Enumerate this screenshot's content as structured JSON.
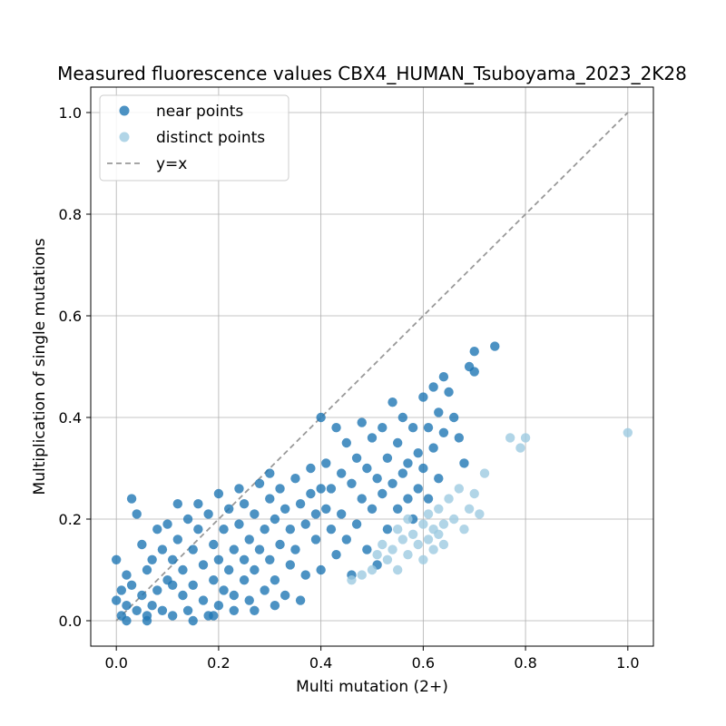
{
  "chart_data": {
    "type": "scatter",
    "title": "Measured fluorescence values CBX4_HUMAN_Tsuboyama_2023_2K28",
    "xlabel": "Multi mutation (2+)",
    "ylabel": "Multiplication of single mutations",
    "xlim": [
      -0.05,
      1.05
    ],
    "ylim": [
      -0.05,
      1.05
    ],
    "xticks": [
      "0.0",
      "0.2",
      "0.4",
      "0.6",
      "0.8",
      "1.0"
    ],
    "yticks": [
      "0.0",
      "0.2",
      "0.4",
      "0.6",
      "0.8",
      "1.0"
    ],
    "grid": true,
    "legend_position": "top-left",
    "series": [
      {
        "name": "near points",
        "color": "#1f77b4",
        "points": [
          [
            0.0,
            0.12
          ],
          [
            0.0,
            0.04
          ],
          [
            0.01,
            0.01
          ],
          [
            0.01,
            0.06
          ],
          [
            0.02,
            0.09
          ],
          [
            0.02,
            0.03
          ],
          [
            0.03,
            0.24
          ],
          [
            0.03,
            0.07
          ],
          [
            0.04,
            0.21
          ],
          [
            0.04,
            0.02
          ],
          [
            0.05,
            0.15
          ],
          [
            0.05,
            0.05
          ],
          [
            0.06,
            0.1
          ],
          [
            0.06,
            0.01
          ],
          [
            0.07,
            0.12
          ],
          [
            0.07,
            0.03
          ],
          [
            0.08,
            0.18
          ],
          [
            0.08,
            0.06
          ],
          [
            0.09,
            0.14
          ],
          [
            0.09,
            0.02
          ],
          [
            0.1,
            0.19
          ],
          [
            0.1,
            0.08
          ],
          [
            0.11,
            0.12
          ],
          [
            0.11,
            0.01
          ],
          [
            0.12,
            0.23
          ],
          [
            0.12,
            0.16
          ],
          [
            0.13,
            0.05
          ],
          [
            0.13,
            0.1
          ],
          [
            0.14,
            0.2
          ],
          [
            0.14,
            0.02
          ],
          [
            0.15,
            0.14
          ],
          [
            0.15,
            0.07
          ],
          [
            0.16,
            0.23
          ],
          [
            0.16,
            0.18
          ],
          [
            0.17,
            0.04
          ],
          [
            0.17,
            0.11
          ],
          [
            0.18,
            0.21
          ],
          [
            0.18,
            0.01
          ],
          [
            0.19,
            0.15
          ],
          [
            0.19,
            0.08
          ],
          [
            0.2,
            0.25
          ],
          [
            0.2,
            0.12
          ],
          [
            0.2,
            0.03
          ],
          [
            0.21,
            0.18
          ],
          [
            0.21,
            0.06
          ],
          [
            0.22,
            0.22
          ],
          [
            0.22,
            0.1
          ],
          [
            0.23,
            0.14
          ],
          [
            0.23,
            0.02
          ],
          [
            0.24,
            0.26
          ],
          [
            0.24,
            0.19
          ],
          [
            0.25,
            0.08
          ],
          [
            0.25,
            0.12
          ],
          [
            0.25,
            0.23
          ],
          [
            0.26,
            0.16
          ],
          [
            0.26,
            0.04
          ],
          [
            0.27,
            0.21
          ],
          [
            0.27,
            0.1
          ],
          [
            0.28,
            0.27
          ],
          [
            0.28,
            0.14
          ],
          [
            0.29,
            0.18
          ],
          [
            0.29,
            0.06
          ],
          [
            0.3,
            0.24
          ],
          [
            0.3,
            0.12
          ],
          [
            0.3,
            0.29
          ],
          [
            0.31,
            0.2
          ],
          [
            0.31,
            0.08
          ],
          [
            0.32,
            0.15
          ],
          [
            0.32,
            0.26
          ],
          [
            0.33,
            0.22
          ],
          [
            0.33,
            0.05
          ],
          [
            0.34,
            0.18
          ],
          [
            0.34,
            0.11
          ],
          [
            0.35,
            0.28
          ],
          [
            0.35,
            0.14
          ],
          [
            0.36,
            0.23
          ],
          [
            0.36,
            0.04
          ],
          [
            0.37,
            0.19
          ],
          [
            0.37,
            0.09
          ],
          [
            0.38,
            0.3
          ],
          [
            0.38,
            0.25
          ],
          [
            0.39,
            0.16
          ],
          [
            0.39,
            0.21
          ],
          [
            0.4,
            0.4
          ],
          [
            0.4,
            0.26
          ],
          [
            0.4,
            0.1
          ],
          [
            0.41,
            0.22
          ],
          [
            0.41,
            0.31
          ],
          [
            0.42,
            0.18
          ],
          [
            0.42,
            0.26
          ],
          [
            0.43,
            0.38
          ],
          [
            0.43,
            0.13
          ],
          [
            0.44,
            0.29
          ],
          [
            0.44,
            0.21
          ],
          [
            0.45,
            0.16
          ],
          [
            0.45,
            0.35
          ],
          [
            0.46,
            0.27
          ],
          [
            0.46,
            0.09
          ],
          [
            0.47,
            0.32
          ],
          [
            0.47,
            0.19
          ],
          [
            0.48,
            0.39
          ],
          [
            0.48,
            0.24
          ],
          [
            0.49,
            0.14
          ],
          [
            0.49,
            0.3
          ],
          [
            0.5,
            0.36
          ],
          [
            0.5,
            0.22
          ],
          [
            0.51,
            0.28
          ],
          [
            0.51,
            0.11
          ],
          [
            0.52,
            0.38
          ],
          [
            0.52,
            0.25
          ],
          [
            0.53,
            0.32
          ],
          [
            0.53,
            0.18
          ],
          [
            0.54,
            0.43
          ],
          [
            0.54,
            0.27
          ],
          [
            0.55,
            0.22
          ],
          [
            0.55,
            0.35
          ],
          [
            0.56,
            0.4
          ],
          [
            0.56,
            0.29
          ],
          [
            0.57,
            0.24
          ],
          [
            0.57,
            0.31
          ],
          [
            0.58,
            0.38
          ],
          [
            0.58,
            0.2
          ],
          [
            0.59,
            0.33
          ],
          [
            0.59,
            0.26
          ],
          [
            0.6,
            0.44
          ],
          [
            0.6,
            0.3
          ],
          [
            0.61,
            0.38
          ],
          [
            0.61,
            0.24
          ],
          [
            0.62,
            0.46
          ],
          [
            0.62,
            0.34
          ],
          [
            0.63,
            0.41
          ],
          [
            0.63,
            0.28
          ],
          [
            0.64,
            0.48
          ],
          [
            0.64,
            0.37
          ],
          [
            0.65,
            0.45
          ],
          [
            0.66,
            0.4
          ],
          [
            0.67,
            0.36
          ],
          [
            0.68,
            0.31
          ],
          [
            0.69,
            0.5
          ],
          [
            0.7,
            0.53
          ],
          [
            0.7,
            0.49
          ],
          [
            0.74,
            0.54
          ],
          [
            0.02,
            0.0
          ],
          [
            0.06,
            0.0
          ],
          [
            0.11,
            0.07
          ],
          [
            0.15,
            0.0
          ],
          [
            0.19,
            0.01
          ],
          [
            0.23,
            0.05
          ],
          [
            0.27,
            0.02
          ],
          [
            0.31,
            0.03
          ]
        ]
      },
      {
        "name": "distinct points",
        "color": "#9ecae1",
        "points": [
          [
            0.46,
            0.08
          ],
          [
            0.48,
            0.09
          ],
          [
            0.5,
            0.1
          ],
          [
            0.51,
            0.13
          ],
          [
            0.52,
            0.15
          ],
          [
            0.53,
            0.12
          ],
          [
            0.54,
            0.14
          ],
          [
            0.55,
            0.18
          ],
          [
            0.55,
            0.1
          ],
          [
            0.56,
            0.16
          ],
          [
            0.57,
            0.2
          ],
          [
            0.57,
            0.13
          ],
          [
            0.58,
            0.17
          ],
          [
            0.59,
            0.15
          ],
          [
            0.6,
            0.19
          ],
          [
            0.6,
            0.12
          ],
          [
            0.61,
            0.21
          ],
          [
            0.61,
            0.16
          ],
          [
            0.62,
            0.14
          ],
          [
            0.62,
            0.18
          ],
          [
            0.63,
            0.17
          ],
          [
            0.63,
            0.22
          ],
          [
            0.64,
            0.15
          ],
          [
            0.64,
            0.19
          ],
          [
            0.65,
            0.24
          ],
          [
            0.66,
            0.2
          ],
          [
            0.67,
            0.26
          ],
          [
            0.68,
            0.18
          ],
          [
            0.69,
            0.22
          ],
          [
            0.7,
            0.25
          ],
          [
            0.71,
            0.21
          ],
          [
            0.72,
            0.29
          ],
          [
            0.77,
            0.36
          ],
          [
            0.79,
            0.34
          ],
          [
            0.8,
            0.36
          ],
          [
            1.0,
            0.37
          ]
        ]
      }
    ],
    "reference_line": {
      "name": "y=x",
      "from": [
        0.0,
        0.0
      ],
      "to": [
        1.0,
        1.0
      ],
      "color": "#999999",
      "style": "dashed"
    }
  }
}
